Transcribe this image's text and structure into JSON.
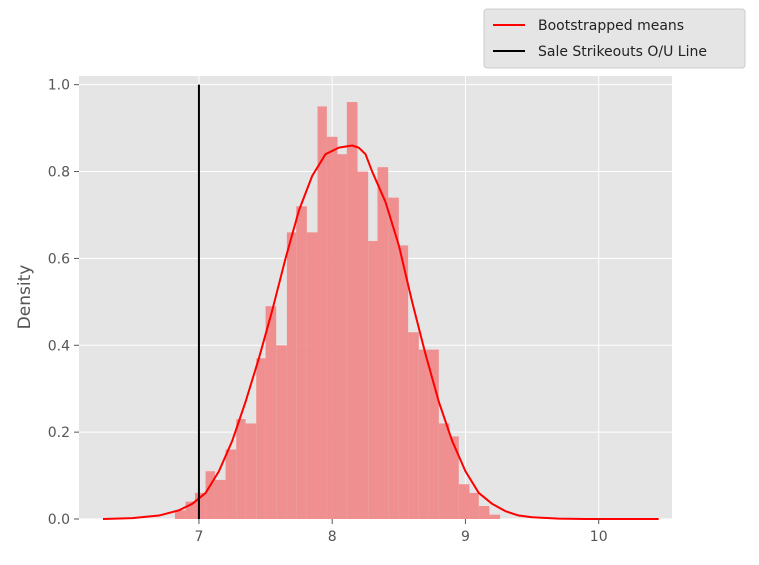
{
  "chart_data": {
    "type": "histogram",
    "title": "",
    "xlabel": "",
    "ylabel": "Density",
    "xlim": [
      6.1,
      10.55
    ],
    "ylim": [
      0,
      1.02
    ],
    "xticks": [
      7,
      8,
      9,
      10
    ],
    "yticks": [
      0.0,
      0.2,
      0.4,
      0.6,
      0.8,
      1.0
    ],
    "xtick_labels": [
      "7",
      "8",
      "9",
      "10"
    ],
    "ytick_labels": [
      "0.0",
      "0.2",
      "0.4",
      "0.6",
      "0.8",
      "1.0"
    ],
    "grid": true,
    "legend_placement": "top-right, outside plot",
    "colors": {
      "plot_background": "#e5e5e5",
      "grid": "#ffffff",
      "bars": "#f08a8a",
      "kde": "#ff0000",
      "line": "#000000"
    },
    "histogram": {
      "bin_edges": [
        6.82,
        6.9,
        6.97,
        7.05,
        7.12,
        7.2,
        7.28,
        7.35,
        7.43,
        7.5,
        7.58,
        7.66,
        7.73,
        7.81,
        7.89,
        7.96,
        8.04,
        8.11,
        8.19,
        8.27,
        8.34,
        8.42,
        8.5,
        8.57,
        8.65,
        8.72,
        8.8,
        8.88,
        8.95,
        9.03,
        9.1,
        9.18,
        9.26
      ],
      "densities": [
        0.02,
        0.04,
        0.06,
        0.11,
        0.09,
        0.16,
        0.23,
        0.22,
        0.37,
        0.49,
        0.4,
        0.66,
        0.72,
        0.66,
        0.95,
        0.88,
        0.84,
        0.96,
        0.8,
        0.64,
        0.81,
        0.74,
        0.63,
        0.43,
        0.39,
        0.39,
        0.22,
        0.19,
        0.08,
        0.06,
        0.03,
        0.01
      ]
    },
    "series": [
      {
        "name": "Bootstrapped means",
        "type": "kde-line",
        "x": [
          6.28,
          6.5,
          6.7,
          6.85,
          6.95,
          7.05,
          7.15,
          7.25,
          7.35,
          7.45,
          7.55,
          7.65,
          7.75,
          7.85,
          7.95,
          8.05,
          8.15,
          8.2,
          8.25,
          8.3,
          8.4,
          8.5,
          8.6,
          8.7,
          8.8,
          8.9,
          9.0,
          9.1,
          9.2,
          9.3,
          9.4,
          9.5,
          9.7,
          9.9,
          10.2,
          10.45
        ],
        "y": [
          0.0,
          0.002,
          0.008,
          0.02,
          0.035,
          0.06,
          0.11,
          0.18,
          0.27,
          0.37,
          0.48,
          0.6,
          0.71,
          0.79,
          0.84,
          0.855,
          0.86,
          0.855,
          0.84,
          0.8,
          0.73,
          0.63,
          0.5,
          0.38,
          0.27,
          0.18,
          0.11,
          0.06,
          0.035,
          0.018,
          0.008,
          0.004,
          0.001,
          0.0,
          0.0,
          0.0
        ]
      },
      {
        "name": "Sale Strikeouts O/U Line",
        "type": "vertical-line",
        "x": 7.0,
        "y": [
          0.0,
          1.0
        ]
      }
    ]
  }
}
